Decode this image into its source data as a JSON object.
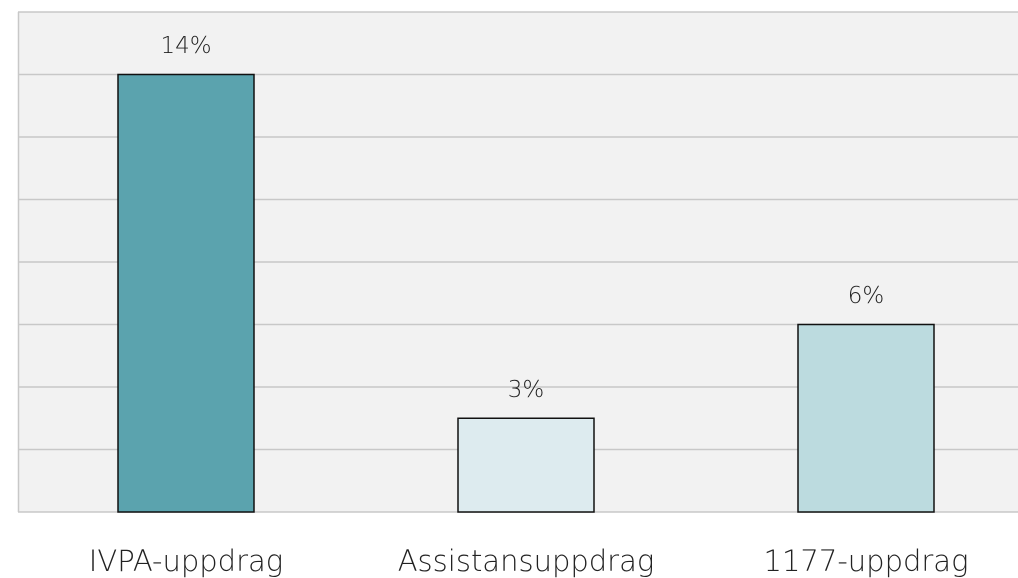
{
  "chart_data": {
    "type": "bar",
    "categories": [
      "IVPA-uppdrag",
      "Assistansuppdrag",
      "1177-uppdrag"
    ],
    "values": [
      14,
      3,
      6
    ],
    "value_labels": [
      "14%",
      "3%",
      "6%"
    ],
    "colors": [
      "#5ba3ae",
      "#ddebef",
      "#bcdbdf"
    ],
    "ylim": [
      0,
      16
    ],
    "yticks": [
      0,
      2,
      4,
      6,
      8,
      10,
      12,
      14,
      16
    ],
    "grid": true
  }
}
